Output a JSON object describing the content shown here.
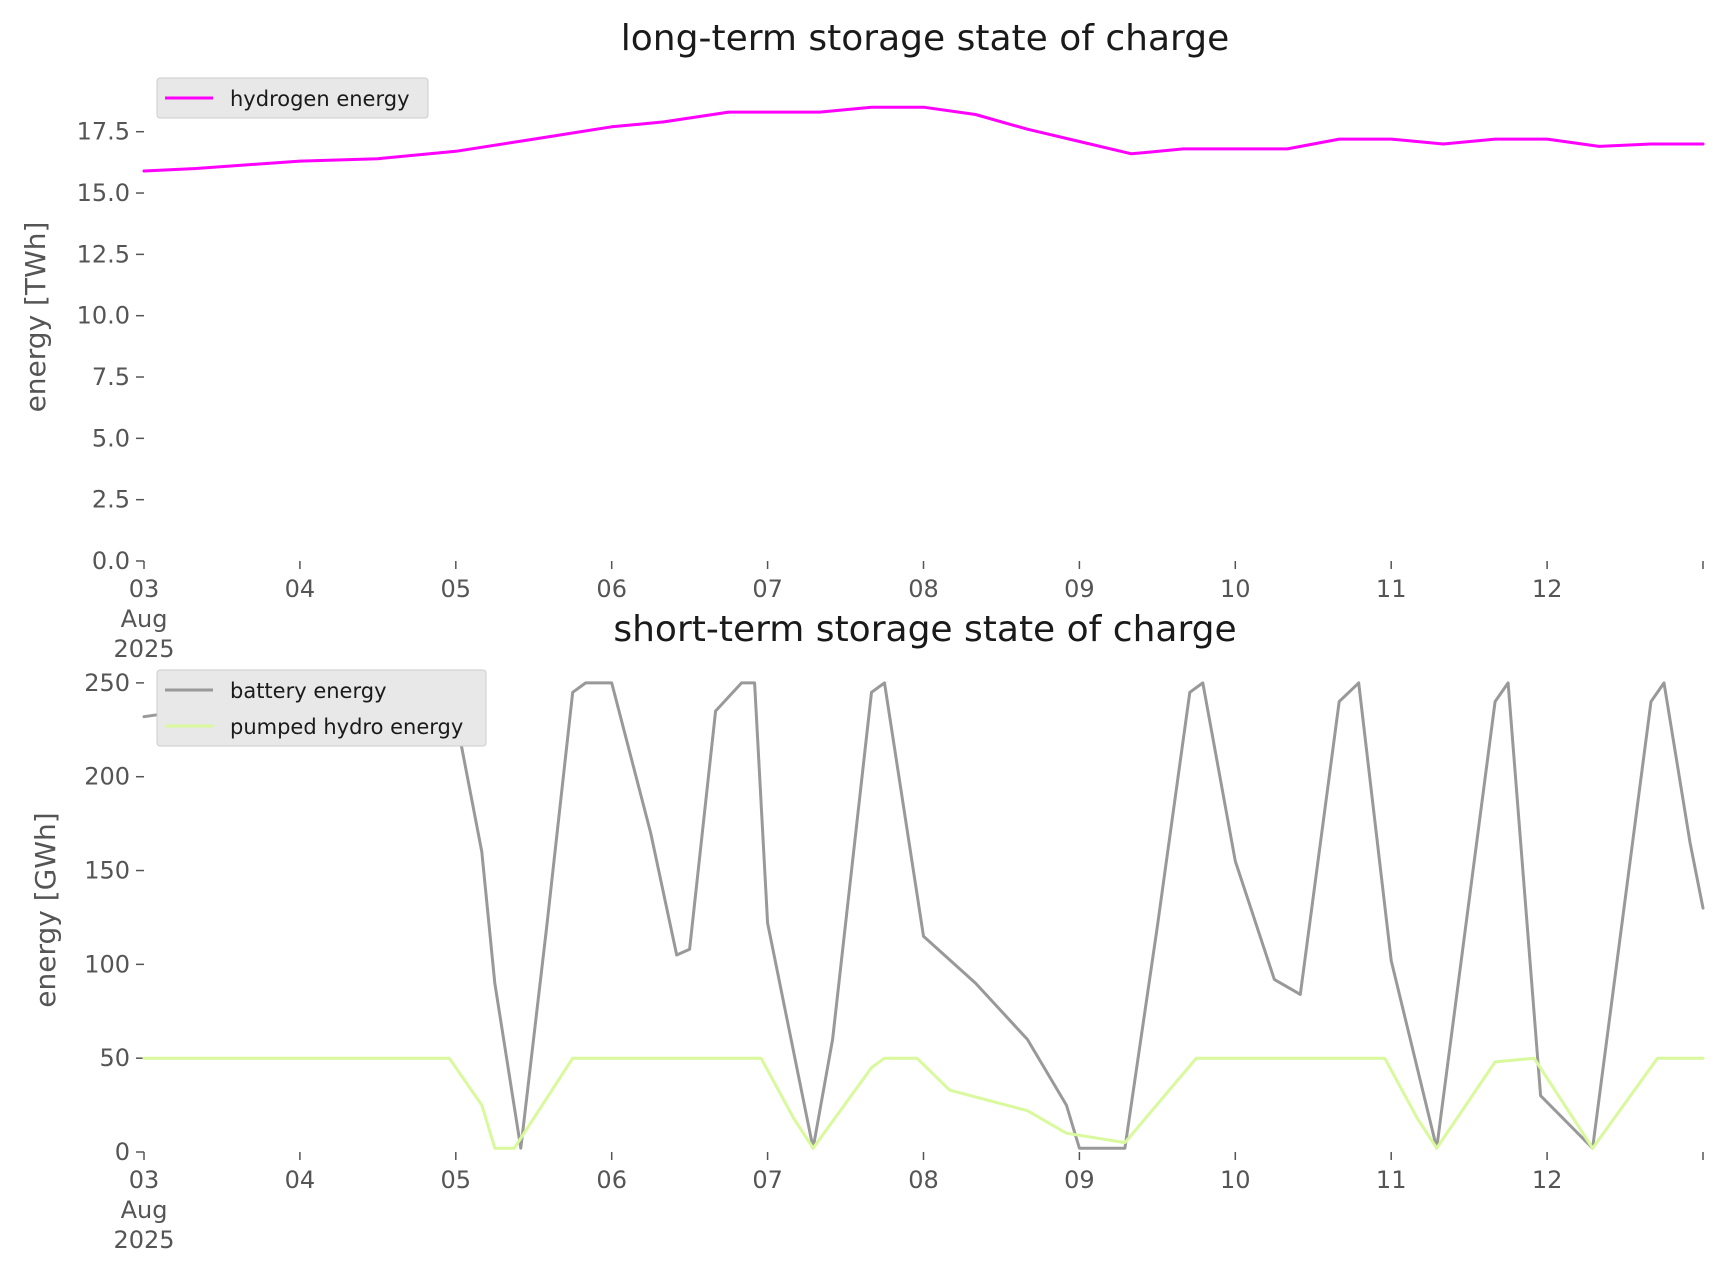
{
  "chart_data": [
    {
      "type": "line",
      "title": "long-term storage state of charge",
      "ylabel": "energy [TWh]",
      "xlabel": "",
      "ylim": [
        0,
        19.2
      ],
      "yticks": [
        "0.0",
        "2.5",
        "5.0",
        "7.5",
        "10.0",
        "12.5",
        "15.0",
        "17.5"
      ],
      "ytick_values": [
        0,
        2.5,
        5,
        7.5,
        10,
        12.5,
        15,
        17.5
      ],
      "x_range": [
        "2025-08-03 00:00",
        "2025-08-13 00:00"
      ],
      "xticks": [
        "03",
        "04",
        "05",
        "06",
        "07",
        "08",
        "09",
        "10",
        "11",
        "12"
      ],
      "xtick_dates": [
        "2025-08-03",
        "2025-08-04",
        "2025-08-05",
        "2025-08-06",
        "2025-08-07",
        "2025-08-08",
        "2025-08-09",
        "2025-08-10",
        "2025-08-11",
        "2025-08-12"
      ],
      "xtick_sub": [
        "Aug",
        "2025"
      ],
      "legend_location": "upper-left",
      "grid": false,
      "series": [
        {
          "name": "hydrogen energy",
          "color": "#ff00ff",
          "x": [
            "2025-08-03 00:00",
            "2025-08-03 08:00",
            "2025-08-04 00:00",
            "2025-08-04 12:00",
            "2025-08-05 00:00",
            "2025-08-05 12:00",
            "2025-08-06 00:00",
            "2025-08-06 08:00",
            "2025-08-06 18:00",
            "2025-08-07 08:00",
            "2025-08-07 16:00",
            "2025-08-08 00:00",
            "2025-08-08 08:00",
            "2025-08-08 16:00",
            "2025-08-09 00:00",
            "2025-08-09 08:00",
            "2025-08-09 16:00",
            "2025-08-10 00:00",
            "2025-08-10 08:00",
            "2025-08-10 16:00",
            "2025-08-11 00:00",
            "2025-08-11 08:00",
            "2025-08-11 16:00",
            "2025-08-12 00:00",
            "2025-08-12 08:00",
            "2025-08-12 16:00",
            "2025-08-13 00:00"
          ],
          "y": [
            15.9,
            16.0,
            16.3,
            16.4,
            16.7,
            17.2,
            17.7,
            17.9,
            18.3,
            18.3,
            18.5,
            18.5,
            18.2,
            17.6,
            17.1,
            16.6,
            16.8,
            16.8,
            16.8,
            17.2,
            17.2,
            17.0,
            17.2,
            17.2,
            16.9,
            17.0,
            17.0
          ]
        }
      ]
    },
    {
      "type": "line",
      "title": "short-term storage state of charge",
      "ylabel": "energy [GWh]",
      "xlabel": "",
      "ylim": [
        0,
        251
      ],
      "yticks": [
        "0",
        "50",
        "100",
        "150",
        "200",
        "250"
      ],
      "ytick_values": [
        0,
        50,
        100,
        150,
        200,
        250
      ],
      "x_range": [
        "2025-08-03 00:00",
        "2025-08-13 00:00"
      ],
      "xticks": [
        "03",
        "04",
        "05",
        "06",
        "07",
        "08",
        "09",
        "10",
        "11",
        "12"
      ],
      "xtick_dates": [
        "2025-08-03",
        "2025-08-04",
        "2025-08-05",
        "2025-08-06",
        "2025-08-07",
        "2025-08-08",
        "2025-08-09",
        "2025-08-10",
        "2025-08-11",
        "2025-08-12"
      ],
      "xtick_sub": [
        "Aug",
        "2025"
      ],
      "legend_location": "upper-left",
      "grid": false,
      "series": [
        {
          "name": "battery energy",
          "color": "#999999",
          "x": [
            "2025-08-03 00:00",
            "2025-08-04 00:00",
            "2025-08-04 16:00",
            "2025-08-04 23:00",
            "2025-08-05 04:00",
            "2025-08-05 06:00",
            "2025-08-05 10:00",
            "2025-08-05 14:00",
            "2025-08-05 18:00",
            "2025-08-05 20:00",
            "2025-08-06 00:00",
            "2025-08-06 06:00",
            "2025-08-06 10:00",
            "2025-08-06 12:00",
            "2025-08-06 16:00",
            "2025-08-06 20:00",
            "2025-08-06 22:00",
            "2025-08-07 00:00",
            "2025-08-07 07:00",
            "2025-08-07 10:00",
            "2025-08-07 16:00",
            "2025-08-07 18:00",
            "2025-08-08 00:00",
            "2025-08-08 08:00",
            "2025-08-08 16:00",
            "2025-08-08 22:00",
            "2025-08-09 00:00",
            "2025-08-09 07:00",
            "2025-08-09 12:00",
            "2025-08-09 17:00",
            "2025-08-09 19:00",
            "2025-08-10 00:00",
            "2025-08-10 06:00",
            "2025-08-10 10:00",
            "2025-08-10 16:00",
            "2025-08-10 19:00",
            "2025-08-11 00:00",
            "2025-08-11 07:00",
            "2025-08-11 16:00",
            "2025-08-11 18:00",
            "2025-08-11 23:00",
            "2025-08-12 07:00",
            "2025-08-12 16:00",
            "2025-08-12 18:00",
            "2025-08-12 22:00",
            "2025-08-13 00:00"
          ],
          "y": [
            232,
            244,
            247,
            250,
            160,
            90,
            2,
            120,
            245,
            250,
            250,
            170,
            105,
            108,
            235,
            250,
            250,
            122,
            2,
            60,
            245,
            250,
            115,
            90,
            60,
            25,
            2,
            2,
            120,
            245,
            250,
            155,
            92,
            84,
            240,
            250,
            102,
            2,
            240,
            250,
            30,
            2,
            240,
            250,
            165,
            130
          ]
        },
        {
          "name": "pumped hydro energy",
          "color": "#d9f99d",
          "x": [
            "2025-08-03 00:00",
            "2025-08-04 23:00",
            "2025-08-05 04:00",
            "2025-08-05 06:00",
            "2025-08-05 09:00",
            "2025-08-05 18:00",
            "2025-08-06 00:00",
            "2025-08-06 23:00",
            "2025-08-07 04:00",
            "2025-08-07 07:00",
            "2025-08-07 16:00",
            "2025-08-07 18:00",
            "2025-08-07 23:00",
            "2025-08-08 04:00",
            "2025-08-08 16:00",
            "2025-08-08 22:00",
            "2025-08-09 07:00",
            "2025-08-09 18:00",
            "2025-08-10 00:00",
            "2025-08-10 23:00",
            "2025-08-11 04:00",
            "2025-08-11 07:00",
            "2025-08-11 16:00",
            "2025-08-11 22:00",
            "2025-08-12 04:00",
            "2025-08-12 07:00",
            "2025-08-12 17:00",
            "2025-08-13 00:00"
          ],
          "y": [
            50,
            50,
            25,
            2,
            2,
            50,
            50,
            50,
            18,
            2,
            45,
            50,
            50,
            33,
            22,
            10,
            5,
            50,
            50,
            50,
            18,
            2,
            48,
            50,
            18,
            2,
            50,
            50
          ]
        }
      ]
    }
  ]
}
